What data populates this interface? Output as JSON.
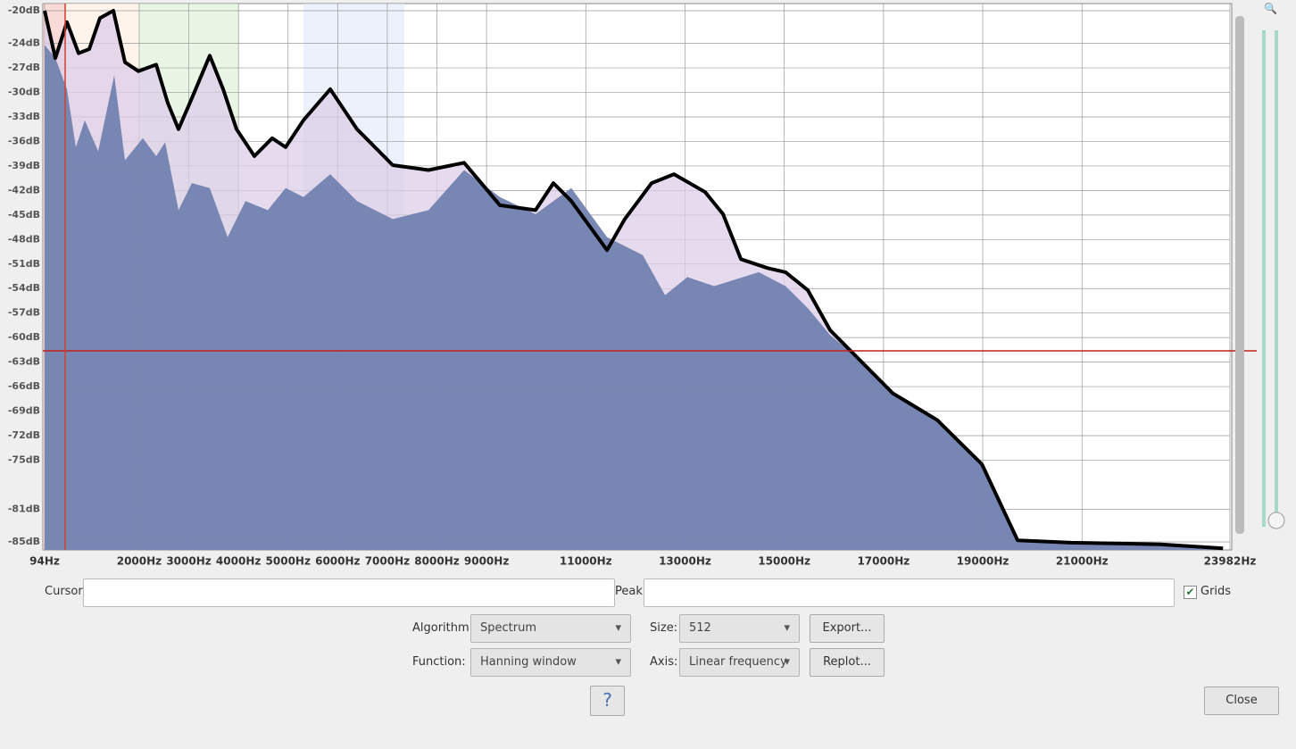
{
  "chart_data": {
    "type": "area",
    "xlim": [
      94,
      23982
    ],
    "xticks": [
      {
        "value": 94,
        "label": "94Hz"
      },
      {
        "value": 2000,
        "label": "2000Hz"
      },
      {
        "value": 3000,
        "label": "3000Hz"
      },
      {
        "value": 4000,
        "label": "4000Hz"
      },
      {
        "value": 5000,
        "label": "5000Hz"
      },
      {
        "value": 6000,
        "label": "6000Hz"
      },
      {
        "value": 7000,
        "label": "7000Hz"
      },
      {
        "value": 8000,
        "label": "8000Hz"
      },
      {
        "value": 9000,
        "label": "9000Hz"
      },
      {
        "value": 11000,
        "label": "11000Hz"
      },
      {
        "value": 13000,
        "label": "13000Hz"
      },
      {
        "value": 15000,
        "label": "15000Hz"
      },
      {
        "value": 17000,
        "label": "17000Hz"
      },
      {
        "value": 19000,
        "label": "19000Hz"
      },
      {
        "value": 21000,
        "label": "21000Hz"
      },
      {
        "value": 23982,
        "label": "23982Hz"
      }
    ],
    "ylim": [
      -20,
      -85
    ],
    "yticks": [
      {
        "value": -20,
        "label": "-20dB"
      },
      {
        "value": -24,
        "label": "-24dB"
      },
      {
        "value": -27,
        "label": "-27dB"
      },
      {
        "value": -30,
        "label": "-30dB"
      },
      {
        "value": -33,
        "label": "-33dB"
      },
      {
        "value": -36,
        "label": "-36dB"
      },
      {
        "value": -39,
        "label": "-39dB"
      },
      {
        "value": -42,
        "label": "-42dB"
      },
      {
        "value": -45,
        "label": "-45dB"
      },
      {
        "value": -48,
        "label": "-48dB"
      },
      {
        "value": -51,
        "label": "-51dB"
      },
      {
        "value": -54,
        "label": "-54dB"
      },
      {
        "value": -57,
        "label": "-57dB"
      },
      {
        "value": -60,
        "label": "-60dB"
      },
      {
        "value": -63,
        "label": "-63dB"
      },
      {
        "value": -66,
        "label": "-66dB"
      },
      {
        "value": -69,
        "label": "-69dB"
      },
      {
        "value": -72,
        "label": "-72dB"
      },
      {
        "value": -75,
        "label": "-75dB"
      },
      {
        "value": -81,
        "label": "-81dB"
      },
      {
        "value": -85,
        "label": "-85dB"
      }
    ],
    "grid": true,
    "series": [
      {
        "color": "#000000",
        "fill": "#dccde8",
        "x": [
          94,
          310,
          544,
          778,
          994,
          1209,
          1479,
          1713,
          1983,
          2343,
          2577,
          2793,
          3062,
          3422,
          3692,
          3962,
          4322,
          4681,
          4951,
          5311,
          5851,
          6390,
          7110,
          7830,
          8549,
          9269,
          9988,
          10348,
          10708,
          11428,
          11787,
          12327,
          12777,
          13407,
          13766,
          14126,
          14666,
          15026,
          15476,
          15925,
          16465,
          17185,
          18084,
          18984,
          19703,
          20783,
          22582,
          23841
        ],
        "values": [
          -20,
          -25.8,
          -21.4,
          -25.2,
          -24.7,
          -20.9,
          -20,
          -26.3,
          -27.4,
          -26.6,
          -31.3,
          -34.5,
          -30.7,
          -25.5,
          -29.6,
          -34.5,
          -37.8,
          -35.6,
          -36.7,
          -33.4,
          -29.6,
          -34.5,
          -38.9,
          -39.5,
          -38.6,
          -43.8,
          -44.4,
          -41.1,
          -43.3,
          -49.3,
          -45.5,
          -41.1,
          -40,
          -42.2,
          -44.9,
          -50.4,
          -51.5,
          -52,
          -54.2,
          -59.1,
          -62.4,
          -66.8,
          -70.1,
          -75.5,
          -84.8,
          -85.1,
          -85.3,
          -85.8
        ]
      },
      {
        "color": "#6f7fae",
        "fill": "#6f7fae",
        "x": [
          94,
          310,
          544,
          724,
          904,
          1173,
          1497,
          1713,
          2073,
          2343,
          2523,
          2793,
          3062,
          3422,
          3782,
          4142,
          4592,
          4951,
          5311,
          5851,
          6390,
          7110,
          7830,
          8549,
          9269,
          9988,
          10708,
          11428,
          12147,
          12597,
          13047,
          13587,
          14486,
          15026,
          15476,
          15925,
          16465,
          17185,
          18084,
          18984,
          19703,
          23841
        ],
        "values": [
          -24.2,
          -25.8,
          -29.6,
          -36.7,
          -33.4,
          -37.2,
          -27.9,
          -38.3,
          -35.6,
          -37.8,
          -36.1,
          -44.4,
          -41.1,
          -41.7,
          -47.7,
          -43.3,
          -44.4,
          -41.7,
          -42.8,
          -40,
          -43.3,
          -45.5,
          -44.4,
          -39.5,
          -42.8,
          -44.9,
          -41.7,
          -47.7,
          -49.9,
          -54.8,
          -52.6,
          -53.7,
          -52,
          -53.7,
          -56.4,
          -59.7,
          -62.4,
          -66.8,
          -70.1,
          -75.5,
          -84.8,
          -85.8
        ]
      }
    ]
  },
  "controls": {
    "cursor_label": "Cursor:",
    "peak_label": "Peak:",
    "grids_label": "Grids",
    "algorithm_label": "Algorithm:",
    "algorithm_value": "Spectrum",
    "size_label": "Size:",
    "size_value": "512",
    "export_button": "Export...",
    "function_label": "Function:",
    "function_value": "Hanning window",
    "axis_label": "Axis:",
    "axis_value": "Linear frequency",
    "replot_button": "Replot...",
    "close_button": "Close"
  }
}
